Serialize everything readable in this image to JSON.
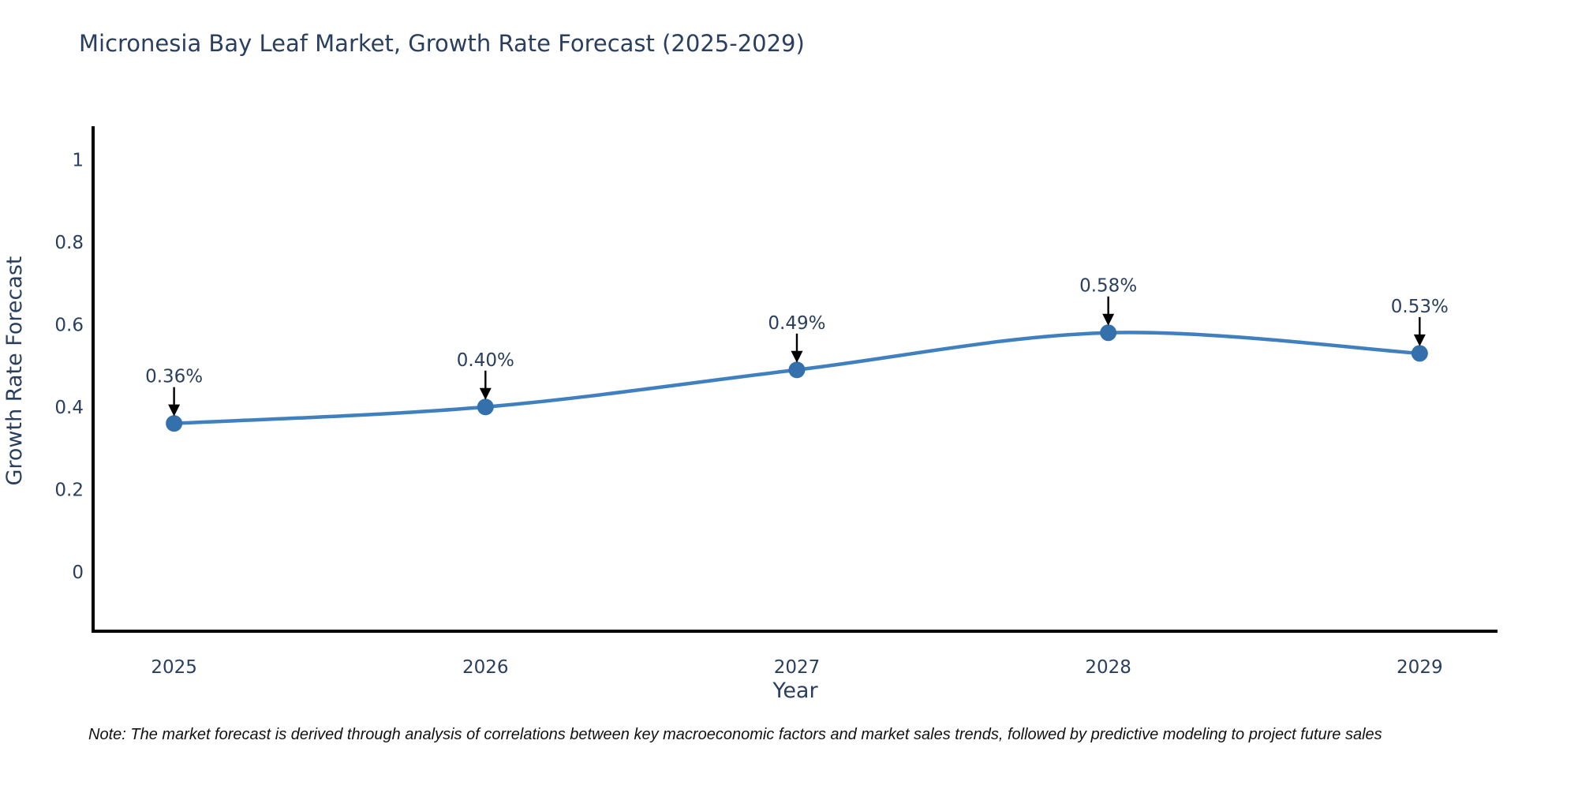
{
  "title": "Micronesia Bay Leaf Market, Growth Rate Forecast (2025-2029)",
  "note": "Note: The market forecast is derived through analysis of correlations between key macroeconomic factors and market sales trends, followed by predictive modeling to project future sales",
  "chart_data": {
    "type": "line",
    "x": [
      2025,
      2026,
      2027,
      2028,
      2029
    ],
    "x_tick_labels": [
      "2025",
      "2026",
      "2027",
      "2028",
      "2029"
    ],
    "series": [
      {
        "name": "Growth Rate Forecast",
        "values": [
          0.36,
          0.4,
          0.49,
          0.58,
          0.53
        ]
      }
    ],
    "point_labels": [
      "0.36%",
      "0.40%",
      "0.49%",
      "0.58%",
      "0.53%"
    ],
    "title": "Micronesia Bay Leaf Market, Growth Rate Forecast (2025-2029)",
    "xlabel": "Year",
    "ylabel": "Growth Rate Forecast",
    "yticks": [
      0,
      0.2,
      0.4,
      0.6,
      0.8,
      1
    ],
    "ytick_labels": [
      "0",
      "0.2",
      "0.4",
      "0.6",
      "0.8",
      "1"
    ],
    "xlim": [
      2024.74,
      2029.25
    ],
    "ylim": [
      -0.144,
      1.081
    ],
    "grid": false,
    "legend": false,
    "line_shape": "spline",
    "colors": {
      "line": "#4080bf",
      "marker": "#3470ab",
      "axis": "#000000",
      "text": "#2a3f5f",
      "annotation_arrow": "#000000"
    }
  }
}
